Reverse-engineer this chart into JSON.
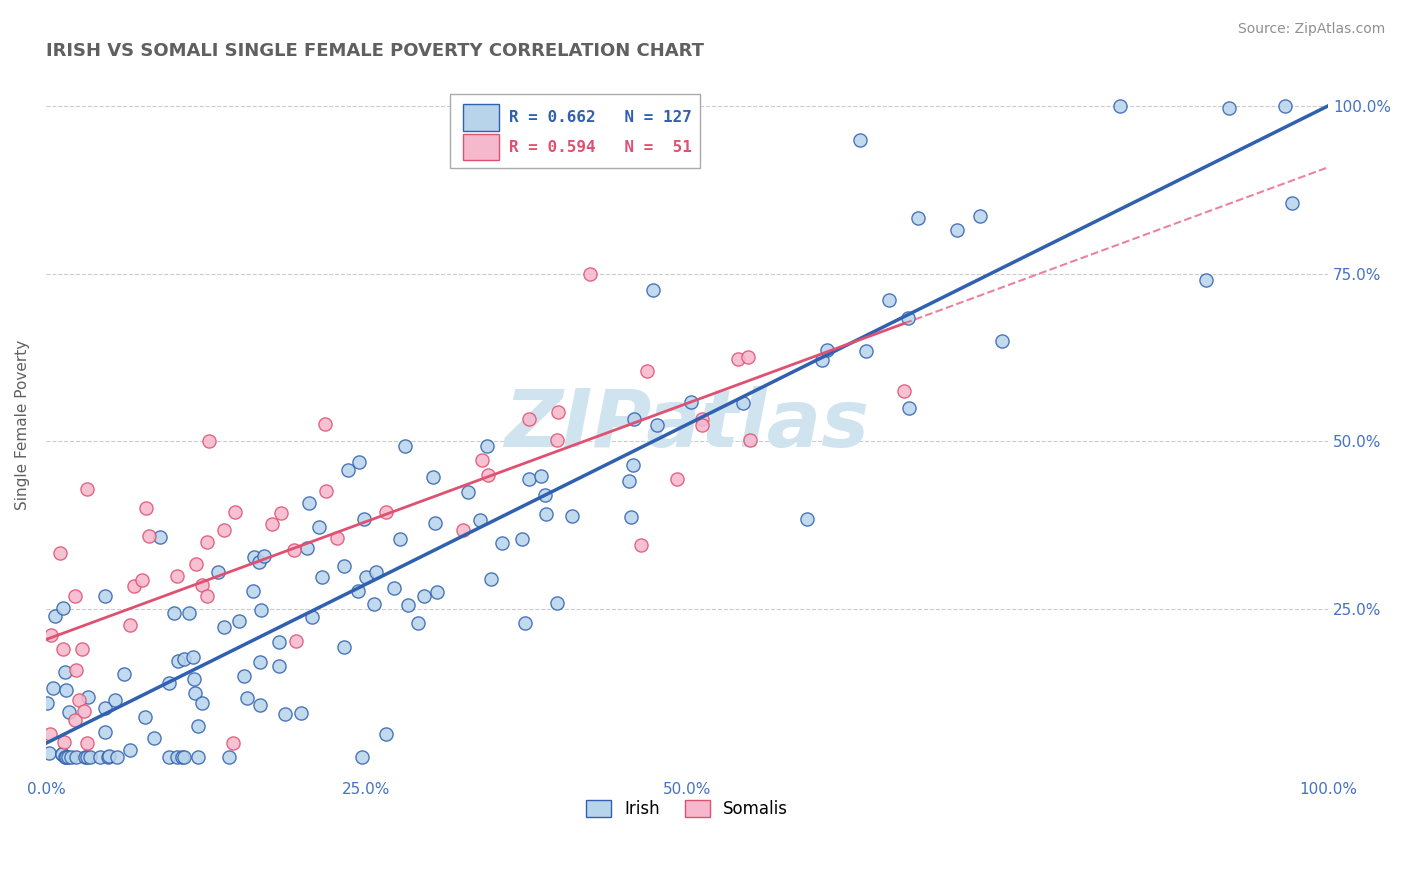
{
  "title": "IRISH VS SOMALI SINGLE FEMALE POVERTY CORRELATION CHART",
  "source": "Source: ZipAtlas.com",
  "ylabel": "Single Female Poverty",
  "irish_R": 0.662,
  "irish_N": 127,
  "somali_R": 0.594,
  "somali_N": 51,
  "irish_color": "#b8d4ea",
  "somali_color": "#f5b8cc",
  "irish_line_color": "#3060b0",
  "somali_line_color": "#e05070",
  "watermark_color": "#d0e4f0",
  "background_color": "#ffffff",
  "grid_color": "#cccccc",
  "title_color": "#606060",
  "source_color": "#909090",
  "tick_color": "#4472c4",
  "ylabel_color": "#606060"
}
